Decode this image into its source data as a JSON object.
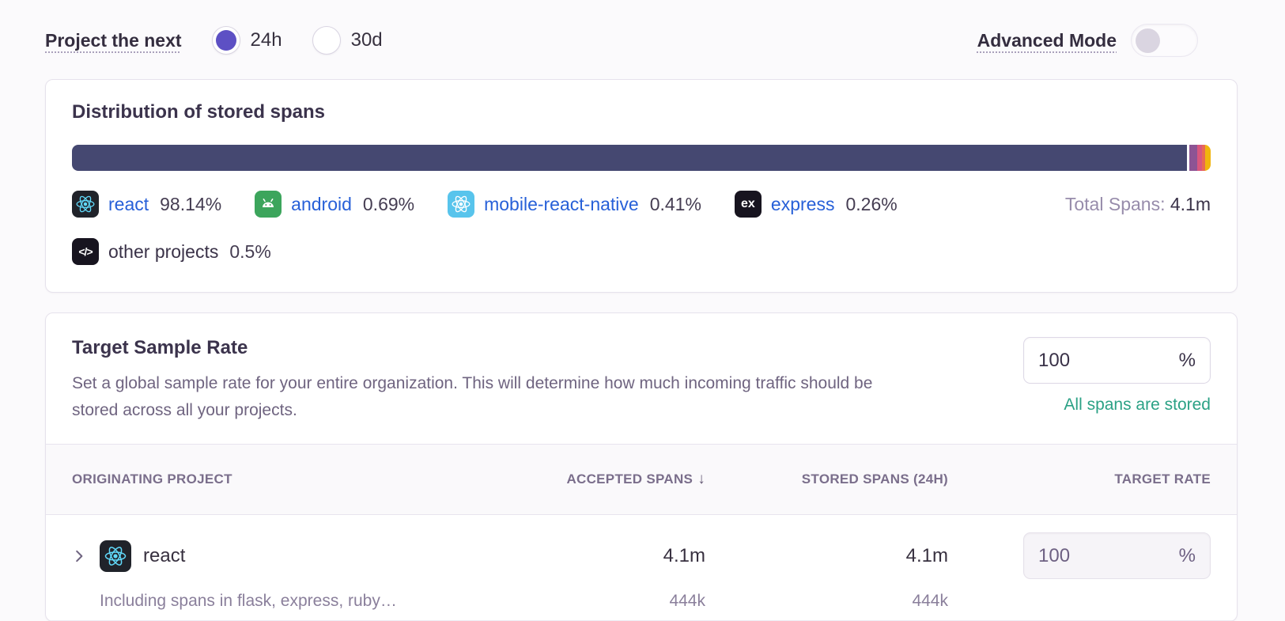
{
  "header_controls": {
    "project_label": "Project the next",
    "period_options": [
      {
        "label": "24h",
        "selected": true
      },
      {
        "label": "30d",
        "selected": false
      }
    ],
    "advanced_mode_label": "Advanced Mode",
    "advanced_mode_enabled": false,
    "accent_color": "#5d50c4"
  },
  "distribution_card": {
    "title": "Distribution of stored spans",
    "total_label": "Total Spans:",
    "total_value": "4.1m",
    "projects": [
      {
        "name": "react",
        "percent_label": "98.14%",
        "percent": 98.14,
        "segment_color": "#454871",
        "icon": "react-icon",
        "icon_bg": "#20232a",
        "is_link": true
      },
      {
        "name": "android",
        "percent_label": "0.69%",
        "percent": 0.69,
        "segment_color": "#8d5494",
        "icon": "android-icon",
        "icon_bg": "#3ca55c",
        "is_link": true
      },
      {
        "name": "mobile-react-native",
        "percent_label": "0.41%",
        "percent": 0.41,
        "segment_color": "#d9577e",
        "icon": "react-native-icon",
        "icon_bg": "#58c4ec",
        "is_link": true
      },
      {
        "name": "express",
        "percent_label": "0.26%",
        "percent": 0.26,
        "segment_color": "#e76a55",
        "icon": "express-icon",
        "icon_bg": "#17141f",
        "is_link": true
      },
      {
        "name": "other projects",
        "percent_label": "0.5%",
        "percent": 0.5,
        "segment_color": "#f0b50e",
        "icon": "code-icon",
        "icon_bg": "#17141f",
        "is_link": false
      }
    ]
  },
  "sample_rate_card": {
    "title": "Target Sample Rate",
    "description": "Set a global sample rate for your entire organization. This will determine how much incoming traffic should be stored across all your projects.",
    "rate_value": "100",
    "rate_unit": "%",
    "status_note": "All spans are stored",
    "status_color": "#2ba185"
  },
  "projects_table": {
    "columns": {
      "project": "Originating Project",
      "accepted": "Accepted Spans",
      "stored": "Stored Spans (24h)",
      "rate": "Target Rate"
    },
    "sort_icon": "↓",
    "rows": [
      {
        "project": "react",
        "accepted": "4.1m",
        "stored": "4.1m",
        "rate_value": "100",
        "rate_unit": "%",
        "subrow": {
          "note": "Including spans in flask, express, ruby…",
          "accepted": "444k",
          "stored": "444k"
        }
      }
    ]
  }
}
